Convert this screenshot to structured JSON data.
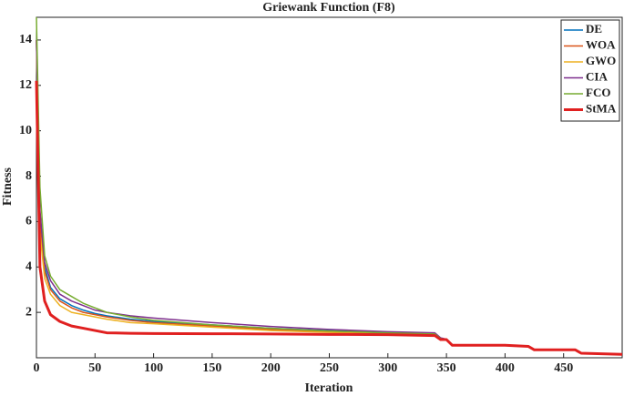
{
  "chart_data": {
    "type": "line",
    "title": "Griewank Function (F8)",
    "x_label": "Iteration",
    "y_label": "Fitness",
    "x": [
      0,
      3,
      7,
      12,
      20,
      30,
      40,
      50,
      60,
      80,
      100,
      150,
      200,
      250,
      300,
      340,
      345,
      350,
      355,
      360,
      400,
      420,
      425,
      460,
      465,
      500
    ],
    "series": [
      {
        "name": "DE",
        "color": "#0072bd",
        "line_width": 1.5,
        "values": [
          14,
          6,
          4,
          3.1,
          2.6,
          2.3,
          2.1,
          1.95,
          1.85,
          1.7,
          1.6,
          1.45,
          1.3,
          1.2,
          1.1,
          1.05,
          0.85,
          0.8,
          0.55,
          0.55,
          0.55,
          0.5,
          0.35,
          0.35,
          0.2,
          0.15
        ]
      },
      {
        "name": "WOA",
        "color": "#d95319",
        "line_width": 1.5,
        "values": [
          14,
          5.8,
          3.8,
          3.0,
          2.5,
          2.2,
          2.0,
          1.9,
          1.8,
          1.65,
          1.55,
          1.4,
          1.25,
          1.15,
          1.08,
          1.03,
          0.83,
          0.8,
          0.55,
          0.55,
          0.55,
          0.5,
          0.35,
          0.35,
          0.2,
          0.15
        ]
      },
      {
        "name": "GWO",
        "color": "#edb120",
        "line_width": 1.5,
        "values": [
          14,
          5.5,
          3.5,
          2.8,
          2.3,
          2.0,
          1.9,
          1.8,
          1.7,
          1.55,
          1.5,
          1.35,
          1.2,
          1.12,
          1.05,
          1.0,
          0.82,
          0.8,
          0.55,
          0.55,
          0.55,
          0.5,
          0.35,
          0.35,
          0.2,
          0.15
        ]
      },
      {
        "name": "CIA",
        "color": "#7e2f8e",
        "line_width": 1.5,
        "values": [
          14,
          6.5,
          4.2,
          3.4,
          2.8,
          2.5,
          2.3,
          2.1,
          2.0,
          1.85,
          1.75,
          1.55,
          1.38,
          1.25,
          1.15,
          1.1,
          0.88,
          0.82,
          0.56,
          0.55,
          0.55,
          0.5,
          0.35,
          0.35,
          0.2,
          0.15
        ]
      },
      {
        "name": "FCO",
        "color": "#77ac30",
        "line_width": 1.5,
        "values": [
          15,
          7.5,
          4.5,
          3.6,
          3.0,
          2.7,
          2.4,
          2.2,
          2.0,
          1.8,
          1.65,
          1.45,
          1.3,
          1.18,
          1.1,
          1.05,
          0.85,
          0.8,
          0.55,
          0.55,
          0.55,
          0.5,
          0.35,
          0.35,
          0.2,
          0.15
        ]
      },
      {
        "name": "StMA",
        "color": "#e02020",
        "line_width": 3,
        "values": [
          12.2,
          4,
          2.5,
          1.9,
          1.6,
          1.4,
          1.3,
          1.2,
          1.1,
          1.08,
          1.07,
          1.06,
          1.05,
          1.03,
          1.02,
          0.98,
          0.8,
          0.8,
          0.55,
          0.55,
          0.55,
          0.5,
          0.35,
          0.35,
          0.2,
          0.15
        ]
      }
    ],
    "xlim": [
      0,
      500
    ],
    "ylim": [
      0,
      15
    ],
    "xticks": [
      0,
      50,
      100,
      150,
      200,
      250,
      300,
      350,
      400,
      450
    ],
    "yticks": [
      2,
      4,
      6,
      8,
      10,
      12,
      14
    ],
    "legend": "upper right"
  }
}
